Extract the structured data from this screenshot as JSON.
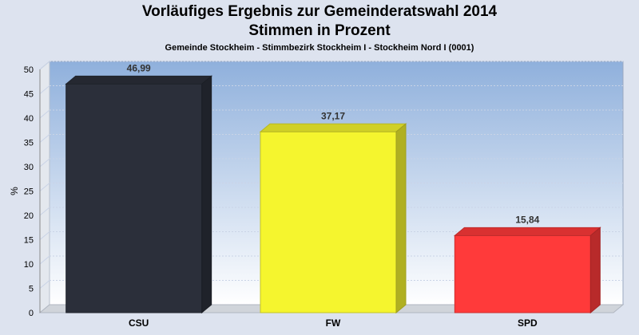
{
  "title": "Vorläufiges Ergebnis zur Gemeinderatswahl 2014",
  "subtitle": "Stimmen in Prozent",
  "subsubtitle": "Gemeinde Stockheim - Stimmbezirk Stockheim I - Stockheim Nord I (0001)",
  "chart_data": {
    "type": "bar",
    "categories": [
      "CSU",
      "FW",
      "SPD"
    ],
    "values": [
      46.99,
      37.17,
      15.84
    ],
    "value_labels": [
      "46,99",
      "37,17",
      "15,84"
    ],
    "colors": [
      "#2b2f3a",
      "#f5f52e",
      "#ff3a3a"
    ],
    "ylabel": "%",
    "ylim": [
      0,
      50
    ],
    "yticks": [
      0,
      5,
      10,
      15,
      20,
      25,
      30,
      35,
      40,
      45,
      50
    ],
    "grid": true,
    "legend": "none"
  }
}
